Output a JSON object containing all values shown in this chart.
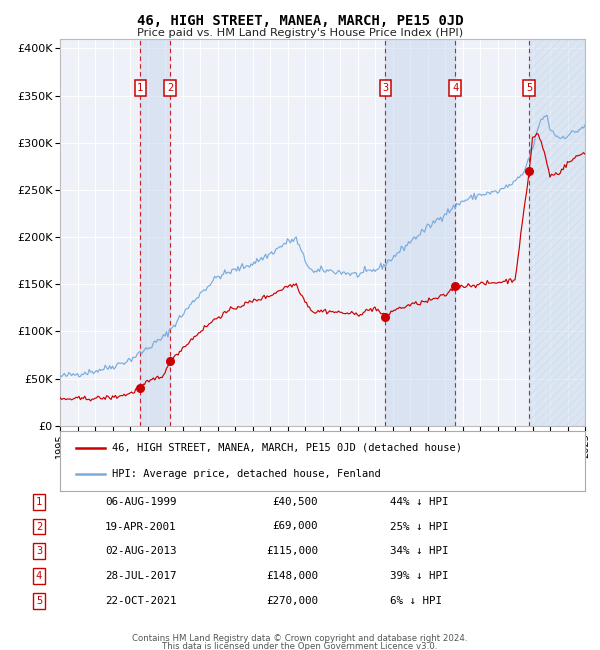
{
  "title": "46, HIGH STREET, MANEA, MARCH, PE15 0JD",
  "subtitle": "Price paid vs. HM Land Registry's House Price Index (HPI)",
  "footer1": "Contains HM Land Registry data © Crown copyright and database right 2024.",
  "footer2": "This data is licensed under the Open Government Licence v3.0.",
  "legend_red": "46, HIGH STREET, MANEA, MARCH, PE15 0JD (detached house)",
  "legend_blue": "HPI: Average price, detached house, Fenland",
  "sales": [
    {
      "num": 1,
      "date": "06-AUG-1999",
      "price": 40500,
      "pct": "44%",
      "year_x": 1999.59
    },
    {
      "num": 2,
      "date": "19-APR-2001",
      "price": 69000,
      "pct": "25%",
      "year_x": 2001.29
    },
    {
      "num": 3,
      "date": "02-AUG-2013",
      "price": 115000,
      "pct": "34%",
      "year_x": 2013.59
    },
    {
      "num": 4,
      "date": "28-JUL-2017",
      "price": 148000,
      "pct": "39%",
      "year_x": 2017.58
    },
    {
      "num": 5,
      "date": "22-OCT-2021",
      "price": 270000,
      "pct": "6%",
      "year_x": 2021.81
    }
  ],
  "xlim": [
    1995,
    2025
  ],
  "ylim": [
    0,
    410000
  ],
  "yticks": [
    0,
    50000,
    100000,
    150000,
    200000,
    250000,
    300000,
    350000,
    400000
  ],
  "ytick_labels": [
    "£0",
    "£50K",
    "£100K",
    "£150K",
    "£200K",
    "£250K",
    "£300K",
    "£350K",
    "£400K"
  ],
  "bg_color": "#eef2f8",
  "red_color": "#cc0000",
  "blue_color": "#7aaadd",
  "shade_color": "#c8d8ee",
  "hatch_color": "#c8d8ee",
  "grid_color": "#ffffff",
  "spine_color": "#bbbbbb"
}
